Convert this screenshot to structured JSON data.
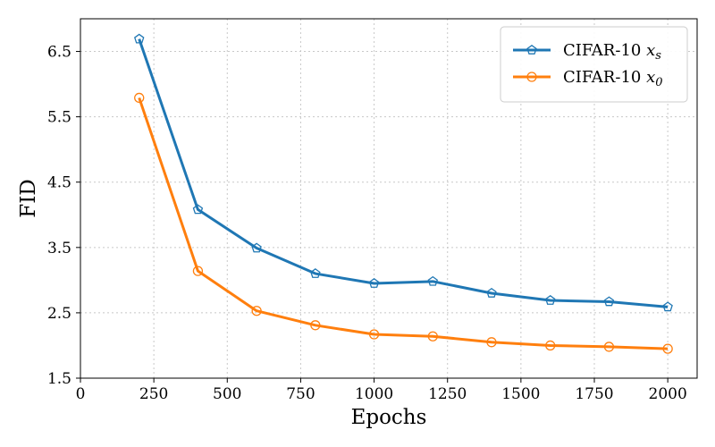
{
  "chart_data": {
    "type": "line",
    "title": "",
    "xlabel": "Epochs",
    "ylabel": "FID",
    "xlim": [
      0,
      2100
    ],
    "ylim": [
      1.5,
      7.0
    ],
    "xticks": [
      0,
      250,
      500,
      750,
      1000,
      1250,
      1500,
      1750,
      2000
    ],
    "xtick_labels": [
      "0",
      "250",
      "500",
      "750",
      "1000",
      "1250",
      "1500",
      "1750",
      "2000"
    ],
    "yticks": [
      1.5,
      2.5,
      3.5,
      4.5,
      5.5,
      6.5
    ],
    "ytick_labels": [
      "1.5",
      "2.5",
      "3.5",
      "4.5",
      "5.5",
      "6.5"
    ],
    "grid": true,
    "legend_position": "top-right",
    "x": [
      200,
      400,
      600,
      800,
      1000,
      1200,
      1400,
      1600,
      1800,
      2000
    ],
    "series": [
      {
        "name": "CIFAR-10 x_s",
        "legend_prefix": "CIFAR-10 ",
        "legend_math": "x",
        "legend_sub": "s",
        "color": "#1f77b4",
        "marker": "pentagon",
        "values": [
          6.69,
          4.08,
          3.49,
          3.1,
          2.95,
          2.98,
          2.8,
          2.69,
          2.67,
          2.59
        ]
      },
      {
        "name": "CIFAR-10 x_0",
        "legend_prefix": "CIFAR-10 ",
        "legend_math": "x",
        "legend_sub": "0",
        "color": "#ff7f0e",
        "marker": "circle",
        "values": [
          5.79,
          3.14,
          2.53,
          2.31,
          2.17,
          2.14,
          2.05,
          2.0,
          1.98,
          1.95
        ]
      }
    ]
  }
}
